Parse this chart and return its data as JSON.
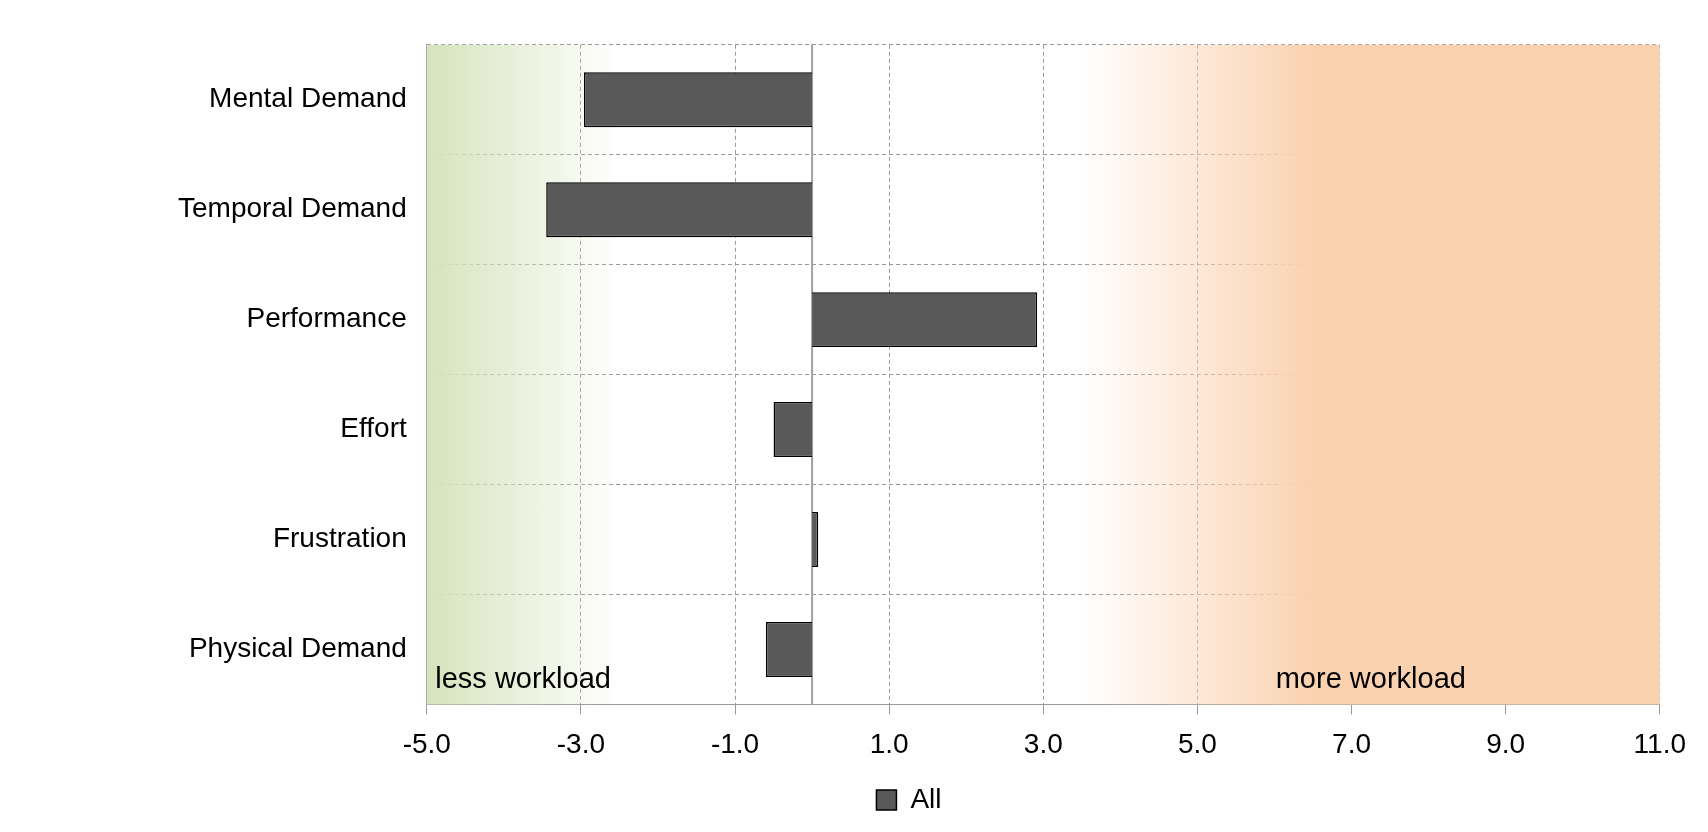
{
  "chart_data": {
    "type": "bar",
    "orientation": "horizontal",
    "categories": [
      "Mental Demand",
      "Temporal Demand",
      "Performance",
      "Effort",
      "Frustration",
      "Physical Demand"
    ],
    "series": [
      {
        "name": "All",
        "color": "#595959",
        "values": [
          -2.96,
          -3.45,
          2.92,
          -0.5,
          0.08,
          -0.6
        ]
      }
    ],
    "xlim": [
      -5,
      11
    ],
    "xticks": [
      {
        "value": -5,
        "label": "-5.0"
      },
      {
        "value": -3,
        "label": "-3.0"
      },
      {
        "value": -1,
        "label": "-1.0"
      },
      {
        "value": 1,
        "label": "1.0"
      },
      {
        "value": 3,
        "label": "3.0"
      },
      {
        "value": 5,
        "label": "5.0"
      },
      {
        "value": 7,
        "label": "7.0"
      },
      {
        "value": 9,
        "label": "9.0"
      },
      {
        "value": 11,
        "label": "11.0"
      }
    ],
    "bands": [
      {
        "axis": "x",
        "from": -5,
        "to": -2.5,
        "label": "less workload",
        "color": "#d6e3bc"
      },
      {
        "axis": "x",
        "from": 3.5,
        "to": 11,
        "label": "more workload",
        "color": "#fad2b0"
      }
    ],
    "grid": true,
    "line_style": "dashed",
    "legend": "bottom"
  }
}
